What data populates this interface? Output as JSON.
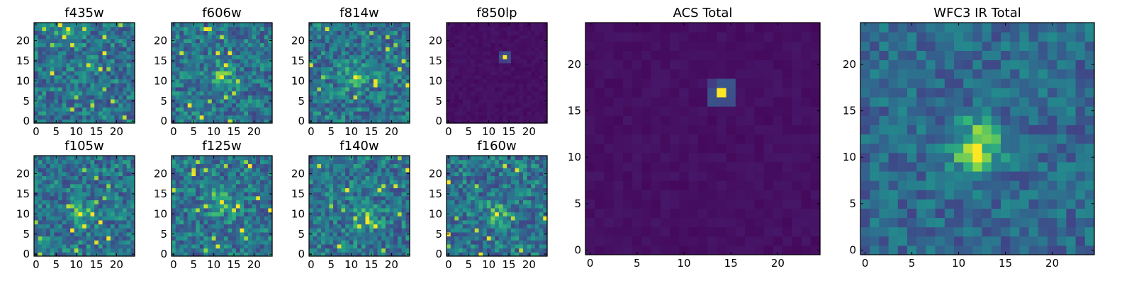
{
  "chart_data": [
    {
      "type": "heatmap",
      "title": "f435w",
      "colormap": "viridis",
      "grid": false,
      "xlim": [
        -0.5,
        24.5
      ],
      "ylim": [
        -0.5,
        24.5
      ],
      "x_ticks": [
        0,
        5,
        10,
        15,
        20
      ],
      "y_ticks": [
        0,
        5,
        10,
        15,
        20
      ],
      "pattern": "noise",
      "peak": [
        8,
        23
      ]
    },
    {
      "type": "heatmap",
      "title": "f606w",
      "colormap": "viridis",
      "grid": false,
      "xlim": [
        -0.5,
        24.5
      ],
      "ylim": [
        -0.5,
        24.5
      ],
      "x_ticks": [
        0,
        5,
        10,
        15,
        20
      ],
      "y_ticks": [
        0,
        5,
        10,
        15,
        20
      ],
      "pattern": "noise",
      "peak": [
        12,
        11
      ]
    },
    {
      "type": "heatmap",
      "title": "f814w",
      "colormap": "viridis",
      "grid": false,
      "xlim": [
        -0.5,
        24.5
      ],
      "ylim": [
        -0.5,
        24.5
      ],
      "x_ticks": [
        0,
        5,
        10,
        15,
        20
      ],
      "y_ticks": [
        0,
        5,
        10,
        15,
        20
      ],
      "pattern": "noise",
      "peak": [
        11,
        11
      ]
    },
    {
      "type": "heatmap",
      "title": "f850lp",
      "colormap": "viridis",
      "grid": false,
      "xlim": [
        -0.5,
        24.5
      ],
      "ylim": [
        -0.5,
        24.5
      ],
      "x_ticks": [
        0,
        5,
        10,
        15,
        20
      ],
      "y_ticks": [
        0,
        5,
        10,
        15,
        20
      ],
      "pattern": "point",
      "peak": [
        14,
        16
      ]
    },
    {
      "type": "heatmap",
      "title": "f105w",
      "colormap": "viridis",
      "grid": false,
      "xlim": [
        -0.5,
        24.5
      ],
      "ylim": [
        -0.5,
        24.5
      ],
      "x_ticks": [
        0,
        5,
        10,
        15,
        20
      ],
      "y_ticks": [
        0,
        5,
        10,
        15,
        20
      ],
      "pattern": "noise",
      "peak": [
        11,
        10
      ]
    },
    {
      "type": "heatmap",
      "title": "f125w",
      "colormap": "viridis",
      "grid": false,
      "xlim": [
        -0.5,
        24.5
      ],
      "ylim": [
        -0.5,
        24.5
      ],
      "x_ticks": [
        0,
        5,
        10,
        15,
        20
      ],
      "y_ticks": [
        0,
        5,
        10,
        15,
        20
      ],
      "pattern": "noise",
      "peak": [
        12,
        13
      ]
    },
    {
      "type": "heatmap",
      "title": "f140w",
      "colormap": "viridis",
      "grid": false,
      "xlim": [
        -0.5,
        24.5
      ],
      "ylim": [
        -0.5,
        24.5
      ],
      "x_ticks": [
        0,
        5,
        10,
        15,
        20
      ],
      "y_ticks": [
        0,
        5,
        10,
        15,
        20
      ],
      "pattern": "noise",
      "peak": [
        14,
        9
      ]
    },
    {
      "type": "heatmap",
      "title": "f160w",
      "colormap": "viridis",
      "grid": false,
      "xlim": [
        -0.5,
        24.5
      ],
      "ylim": [
        -0.5,
        24.5
      ],
      "x_ticks": [
        0,
        5,
        10,
        15,
        20
      ],
      "y_ticks": [
        0,
        5,
        10,
        15,
        20
      ],
      "pattern": "noise",
      "peak": [
        12,
        10
      ]
    },
    {
      "type": "heatmap",
      "title": "ACS Total",
      "colormap": "viridis",
      "grid": false,
      "xlim": [
        -0.5,
        24.5
      ],
      "ylim": [
        -0.5,
        24.5
      ],
      "x_ticks": [
        0,
        5,
        10,
        15,
        20
      ],
      "y_ticks": [
        0,
        5,
        10,
        15,
        20
      ],
      "pattern": "point",
      "peak": [
        14,
        17
      ]
    },
    {
      "type": "heatmap",
      "title": "WFC3 IR Total",
      "colormap": "viridis",
      "grid": false,
      "xlim": [
        -0.5,
        24.5
      ],
      "ylim": [
        -0.5,
        24.5
      ],
      "x_ticks": [
        0,
        5,
        10,
        15,
        20
      ],
      "y_ticks": [
        0,
        5,
        10,
        15,
        20
      ],
      "pattern": "blob",
      "peak": [
        12,
        11
      ]
    }
  ]
}
